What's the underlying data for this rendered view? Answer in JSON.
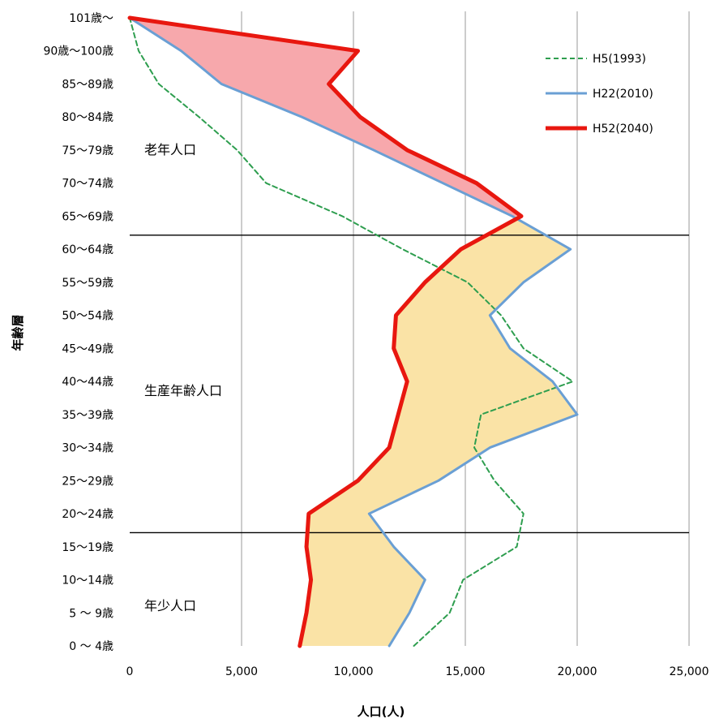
{
  "chart_data": {
    "type": "line",
    "orientation": "horizontal-value-axis",
    "xlabel": "人口(人)",
    "ylabel": "年齢層",
    "xlim": [
      0,
      25000
    ],
    "xticks": [
      0,
      5000,
      10000,
      15000,
      20000,
      25000
    ],
    "xtick_labels": [
      "0",
      "5,000",
      "10,000",
      "15,000",
      "20,000",
      "25,000"
    ],
    "grid": true,
    "legend_position": "top-right",
    "categories": [
      "0 ～ 4歳",
      "5 ～ 9歳",
      "10～14歳",
      "15～19歳",
      "20～24歳",
      "25～29歳",
      "30～34歳",
      "35～39歳",
      "40～44歳",
      "45～49歳",
      "50～54歳",
      "55～59歳",
      "60～64歳",
      "65～69歳",
      "70～74歳",
      "75～79歳",
      "80～84歳",
      "85～89歳",
      "90歳～100歳",
      "101歳～"
    ],
    "series": [
      {
        "name": "H5(1993)",
        "color": "#2e9e4f",
        "style": "dashed",
        "values": [
          12700,
          14300,
          14900,
          17300,
          17600,
          16300,
          15400,
          15700,
          19800,
          17600,
          16600,
          15100,
          12200,
          9500,
          6100,
          4800,
          3100,
          1300,
          400,
          0
        ]
      },
      {
        "name": "H22(2010)",
        "color": "#6a9fd4",
        "style": "solid",
        "values": [
          11600,
          12500,
          13200,
          11800,
          10700,
          13800,
          16100,
          20000,
          18900,
          17000,
          16100,
          17600,
          19700,
          17100,
          14000,
          10900,
          7700,
          4100,
          2300,
          0
        ]
      },
      {
        "name": "H52(2040)",
        "color": "#e8170f",
        "style": "solid-thick",
        "values": [
          7600,
          7900,
          8100,
          7900,
          8000,
          10200,
          11600,
          12000,
          12400,
          11800,
          11900,
          13200,
          14800,
          17500,
          15500,
          12400,
          10300,
          8900,
          10200,
          0
        ]
      }
    ],
    "shaded_regions": [
      {
        "between": [
          "H22(2010)",
          "H52(2040)"
        ],
        "age_range": [
          "101歳～",
          "65～69歳"
        ],
        "color": "#f7a8ac"
      },
      {
        "between": [
          "H52(2040)",
          "H22(2010)"
        ],
        "age_range": [
          "65～69歳",
          "0 ～ 4歳"
        ],
        "color": "#fae3a6"
      }
    ],
    "annotations": [
      "老年人口",
      "生産年齢人口",
      "年少人口"
    ],
    "divider_lines_after": [
      "60～64歳",
      "15～19歳"
    ]
  }
}
